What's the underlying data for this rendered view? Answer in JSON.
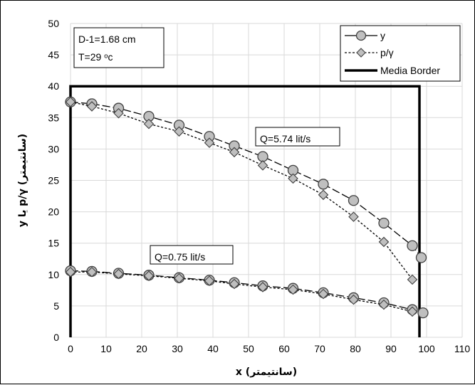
{
  "chart_data": {
    "type": "line",
    "title": "",
    "xlabel": "x (سانتیمتر)",
    "ylabel": "y یا p/γ (سانتیمتر)",
    "xlim": [
      0,
      110
    ],
    "ylim": [
      0,
      50
    ],
    "xticks": [
      0,
      10,
      20,
      30,
      40,
      50,
      60,
      70,
      80,
      90,
      100,
      110
    ],
    "yticks": [
      0,
      5,
      10,
      15,
      20,
      25,
      30,
      35,
      40,
      45,
      50
    ],
    "grid": true,
    "legend_position": "top-right",
    "legend": [
      "y",
      "p/γ",
      "Media Border"
    ],
    "info_box": [
      "D-1=1.68 cm",
      "T=29 ᵒc"
    ],
    "annotations": [
      "Q=5.74 lit/s",
      "Q=0.75 lit/s"
    ],
    "series": [
      {
        "name": "y",
        "group": "Q=5.74 lit/s",
        "marker": "circle",
        "x": [
          0,
          6,
          13.5,
          22,
          30.5,
          39,
          46,
          54,
          62.5,
          71,
          79.5,
          88,
          96,
          98.5
        ],
        "y": [
          37.5,
          37.2,
          36.5,
          35.2,
          33.8,
          32.0,
          30.5,
          28.8,
          26.6,
          24.4,
          21.8,
          18.2,
          14.6,
          12.7
        ]
      },
      {
        "name": "p/γ",
        "group": "Q=5.74 lit/s",
        "marker": "diamond",
        "x": [
          0,
          6,
          13.5,
          22,
          30.5,
          39,
          46,
          54,
          62.5,
          71,
          79.5,
          88,
          96
        ],
        "y": [
          37.5,
          36.8,
          35.7,
          34.0,
          32.8,
          31.0,
          29.5,
          27.4,
          25.3,
          22.7,
          19.2,
          15.2,
          9.2
        ]
      },
      {
        "name": "y",
        "group": "Q=0.75 lit/s",
        "marker": "circle",
        "x": [
          0,
          6,
          13.5,
          22,
          30.5,
          39,
          46,
          54,
          62.5,
          71,
          79.5,
          88,
          96,
          99
        ],
        "y": [
          10.6,
          10.5,
          10.2,
          9.9,
          9.5,
          9.1,
          8.7,
          8.2,
          7.8,
          7.1,
          6.3,
          5.5,
          4.4,
          3.9
        ]
      },
      {
        "name": "p/γ",
        "group": "Q=0.75 lit/s",
        "marker": "diamond",
        "x": [
          0,
          6,
          13.5,
          22,
          30.5,
          39,
          46,
          54,
          62.5,
          71,
          79.5,
          88,
          96
        ],
        "y": [
          10.4,
          10.4,
          10.1,
          9.8,
          9.4,
          9.0,
          8.5,
          8.0,
          7.6,
          6.9,
          6.0,
          5.2,
          4.1
        ]
      }
    ],
    "media_border": {
      "name": "Media Border",
      "x": [
        0,
        0,
        98,
        98
      ],
      "y": [
        0,
        40,
        40,
        0
      ]
    }
  }
}
